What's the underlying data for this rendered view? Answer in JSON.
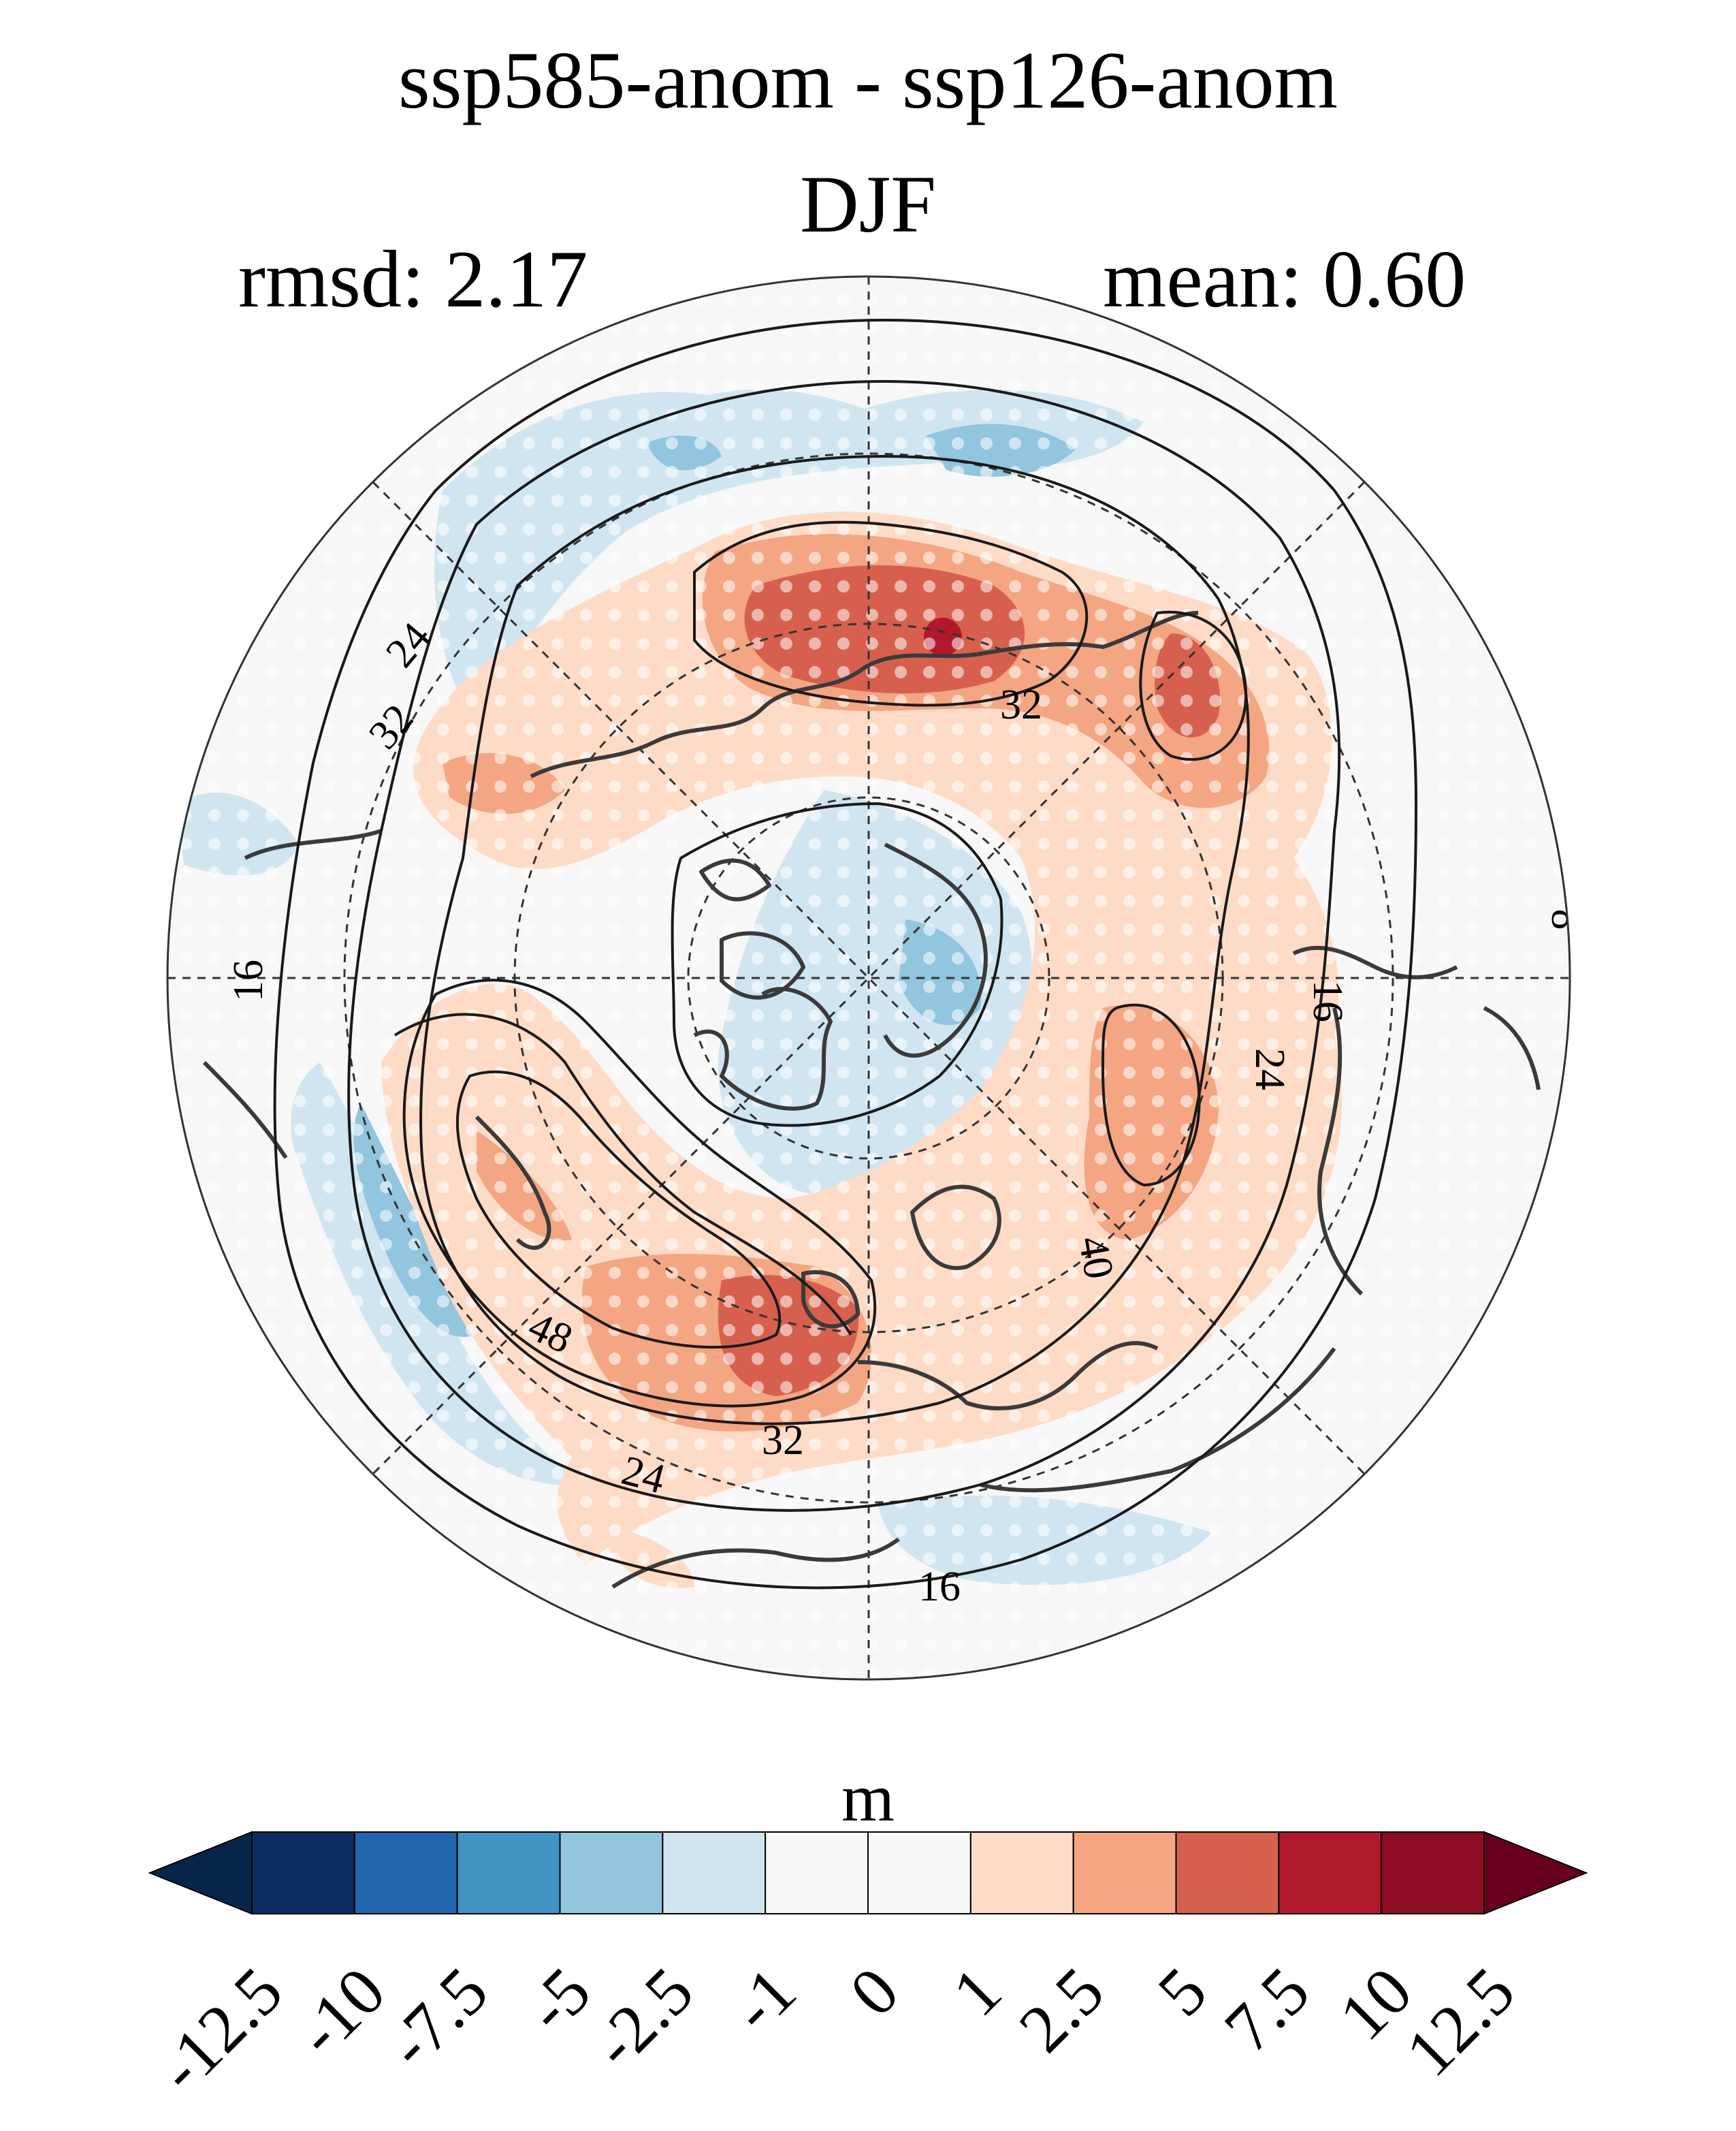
{
  "figure": {
    "title": "ssp585-anom - ssp126-anom",
    "season": "DJF",
    "rmsd_text": "rmsd: 2.17",
    "mean_text": "mean: 0.60"
  },
  "contour_labels": [
    "8",
    "16",
    "16",
    "16",
    "24",
    "24",
    "24",
    "32",
    "32",
    "32",
    "40",
    "48"
  ],
  "colorbar": {
    "unit": "m",
    "ticks": [
      "-12.5",
      "-10",
      "-7.5",
      "-5",
      "-2.5",
      "-1",
      "0",
      "1",
      "2.5",
      "5",
      "7.5",
      "10",
      "12.5"
    ],
    "colors": [
      "#0b2d5f",
      "#2166ac",
      "#4393c3",
      "#92c5de",
      "#d1e5f0",
      "#f7f7f7",
      "#f7f7f7",
      "#fddbc7",
      "#f4a582",
      "#d6604d",
      "#b2182b",
      "#8b0c23"
    ],
    "under_color": "#062548",
    "over_color": "#67001f"
  }
}
